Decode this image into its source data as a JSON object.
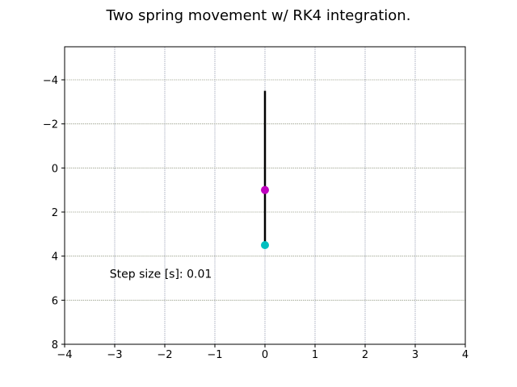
{
  "chart_data": {
    "type": "scatter",
    "title": "Two spring movement w/ RK4 integration.",
    "xlabel": "",
    "ylabel": "",
    "xlim": [
      -4,
      4
    ],
    "ylim": [
      8,
      -5.5
    ],
    "y_inverted": true,
    "grid": true,
    "xticks": [
      -4,
      -3,
      -2,
      -1,
      0,
      1,
      2,
      3,
      4
    ],
    "xtick_labels": [
      "−4",
      "−3",
      "−2",
      "−1",
      "0",
      "1",
      "2",
      "3",
      "4"
    ],
    "yticks": [
      -4,
      -2,
      0,
      2,
      4,
      6,
      8
    ],
    "ytick_labels": [
      "−4",
      "−2",
      "0",
      "2",
      "4",
      "6",
      "8"
    ],
    "spring_line": {
      "x": [
        0,
        0,
        0
      ],
      "y": [
        -3.5,
        1.0,
        3.5
      ],
      "color": "#000000"
    },
    "masses": [
      {
        "x": 0,
        "y": 1.0,
        "color": "#c000c0"
      },
      {
        "x": 0,
        "y": 3.5,
        "color": "#00bfbf"
      }
    ],
    "annotation": {
      "text": "Step size [s]: 0.01",
      "x": -3.1,
      "y": 4.8
    }
  }
}
